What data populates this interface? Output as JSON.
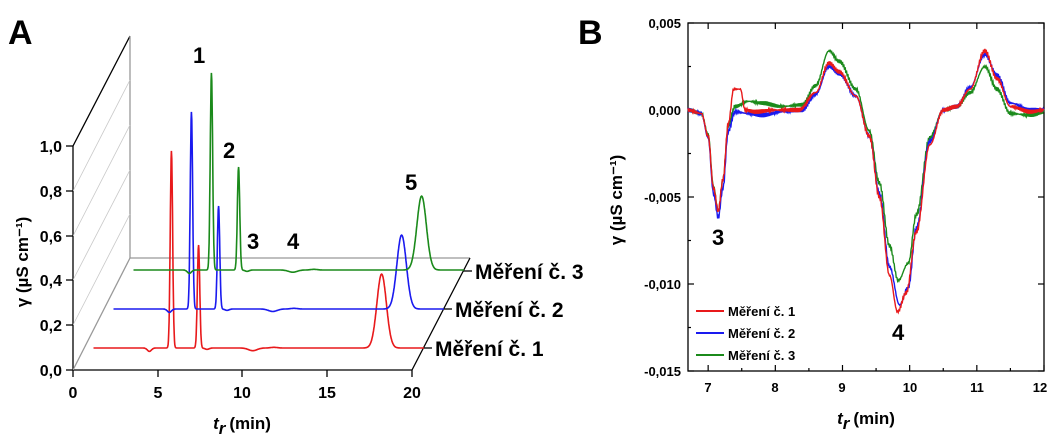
{
  "colors": {
    "run1": "#e8191b",
    "run2": "#1a1aef",
    "run3": "#1b8a1b",
    "axis": "#000000",
    "grid": "#888888"
  },
  "panel_a": {
    "letter": "A",
    "xlabel_main": "t",
    "xlabel_sub": "r",
    "xlabel_unit": "(min)",
    "ylabel": "γ (µS cm⁻¹)",
    "peak_labels": [
      "1",
      "2",
      "3",
      "4",
      "5"
    ],
    "measurement_labels": [
      "Měření č. 3",
      "Měření č. 2",
      "Měření č. 1"
    ]
  },
  "panel_b": {
    "letter": "B",
    "xlabel_main": "t",
    "xlabel_sub": "r",
    "xlabel_unit": "(min)",
    "ylabel": "γ (µS cm⁻¹)",
    "peak_labels": [
      "3",
      "4"
    ],
    "legend": [
      "Měření č. 1",
      "Měření č. 2",
      "Měření č. 3"
    ]
  },
  "chart_data": [
    {
      "type": "line",
      "style": "3d-waterfall",
      "xlim": [
        0,
        20
      ],
      "ylim": [
        0.0,
        1.0
      ],
      "x_ticks": [
        "0",
        "5",
        "10",
        "15",
        "20"
      ],
      "y_ticks": [
        "0,0",
        "0,2",
        "0,4",
        "0,6",
        "0,8",
        "1,0"
      ],
      "series": [
        {
          "name": "Měření č. 1",
          "color": "#e8191b",
          "peaks": [
            {
              "x": 3.8,
              "height": -0.015,
              "width": 0.12
            },
            {
              "x": 5.1,
              "height": 0.88,
              "width": 0.07
            },
            {
              "x": 6.7,
              "height": 0.46,
              "width": 0.07
            },
            {
              "x": 7.2,
              "height": -0.006,
              "width": 0.12
            },
            {
              "x": 9.9,
              "height": -0.012,
              "width": 0.25
            },
            {
              "x": 11.15,
              "height": 0.003,
              "width": 0.2
            },
            {
              "x": 17.5,
              "height": 0.33,
              "width": 0.28
            }
          ]
        },
        {
          "name": "Měření č. 2",
          "color": "#1a1aef",
          "peaks": [
            {
              "x": 3.8,
              "height": -0.015,
              "width": 0.12
            },
            {
              "x": 5.1,
              "height": 0.88,
              "width": 0.07
            },
            {
              "x": 6.7,
              "height": 0.46,
              "width": 0.07
            },
            {
              "x": 7.2,
              "height": -0.006,
              "width": 0.12
            },
            {
              "x": 9.9,
              "height": -0.011,
              "width": 0.25
            },
            {
              "x": 11.15,
              "height": 0.003,
              "width": 0.2
            },
            {
              "x": 17.5,
              "height": 0.33,
              "width": 0.28
            }
          ]
        },
        {
          "name": "Měření č. 3",
          "color": "#1b8a1b",
          "peaks": [
            {
              "x": 3.8,
              "height": -0.015,
              "width": 0.12
            },
            {
              "x": 5.1,
              "height": 0.88,
              "width": 0.07
            },
            {
              "x": 6.7,
              "height": 0.46,
              "width": 0.07
            },
            {
              "x": 7.2,
              "height": -0.006,
              "width": 0.12
            },
            {
              "x": 9.9,
              "height": -0.01,
              "width": 0.25
            },
            {
              "x": 11.15,
              "height": 0.003,
              "width": 0.2
            },
            {
              "x": 17.5,
              "height": 0.33,
              "width": 0.28
            }
          ]
        }
      ]
    },
    {
      "type": "line",
      "xlim": [
        6.7,
        12
      ],
      "ylim": [
        -0.015,
        0.005
      ],
      "x_ticks": [
        "7",
        "8",
        "9",
        "10",
        "11",
        "12"
      ],
      "y_ticks": [
        "0,005",
        "0,000",
        "-0,005",
        "-0,010",
        "-0,015"
      ],
      "legend_position": "bottom-left",
      "series": [
        {
          "name": "Měření č. 1",
          "color": "#e8191b",
          "points": [
            [
              6.7,
              0.0
            ],
            [
              6.9,
              -0.0002
            ],
            [
              7.0,
              -0.0015
            ],
            [
              7.08,
              -0.0045
            ],
            [
              7.15,
              -0.0058
            ],
            [
              7.22,
              -0.004
            ],
            [
              7.3,
              -0.0008
            ],
            [
              7.38,
              0.0012
            ],
            [
              7.48,
              0.0012
            ],
            [
              7.55,
              0.0
            ],
            [
              7.7,
              -0.0001
            ],
            [
              8.0,
              0.0
            ],
            [
              8.35,
              0.0
            ],
            [
              8.6,
              0.001
            ],
            [
              8.8,
              0.0027
            ],
            [
              8.95,
              0.0022
            ],
            [
              9.2,
              0.0008
            ],
            [
              9.4,
              -0.0015
            ],
            [
              9.55,
              -0.005
            ],
            [
              9.7,
              -0.0095
            ],
            [
              9.82,
              -0.0116
            ],
            [
              9.95,
              -0.0105
            ],
            [
              10.1,
              -0.007
            ],
            [
              10.3,
              -0.002
            ],
            [
              10.5,
              0.0
            ],
            [
              10.7,
              0.0002
            ],
            [
              10.9,
              0.0012
            ],
            [
              11.12,
              0.0034
            ],
            [
              11.3,
              0.0018
            ],
            [
              11.5,
              0.0002
            ],
            [
              11.8,
              -0.0001
            ],
            [
              12.0,
              0.0
            ]
          ]
        },
        {
          "name": "Měření č. 2",
          "color": "#1a1aef",
          "points": [
            [
              6.7,
              0.0
            ],
            [
              6.9,
              -0.0002
            ],
            [
              7.0,
              -0.0016
            ],
            [
              7.08,
              -0.0048
            ],
            [
              7.15,
              -0.0062
            ],
            [
              7.22,
              -0.0045
            ],
            [
              7.3,
              -0.0012
            ],
            [
              7.4,
              -0.0001
            ],
            [
              7.6,
              -0.0002
            ],
            [
              7.8,
              -0.0003
            ],
            [
              8.1,
              -0.0001
            ],
            [
              8.4,
              0.0
            ],
            [
              8.6,
              0.0009
            ],
            [
              8.8,
              0.0025
            ],
            [
              8.95,
              0.0021
            ],
            [
              9.2,
              0.0008
            ],
            [
              9.4,
              -0.0015
            ],
            [
              9.55,
              -0.0048
            ],
            [
              9.7,
              -0.009
            ],
            [
              9.85,
              -0.0112
            ],
            [
              9.98,
              -0.0102
            ],
            [
              10.1,
              -0.0068
            ],
            [
              10.3,
              -0.0018
            ],
            [
              10.5,
              0.0
            ],
            [
              10.7,
              0.0002
            ],
            [
              10.9,
              0.0013
            ],
            [
              11.12,
              0.0032
            ],
            [
              11.3,
              0.002
            ],
            [
              11.5,
              0.0004
            ],
            [
              11.8,
              0.0
            ],
            [
              12.0,
              0.0
            ]
          ]
        },
        {
          "name": "Měření č. 3",
          "color": "#1b8a1b",
          "points": [
            [
              6.7,
              0.0
            ],
            [
              6.9,
              -0.0002
            ],
            [
              7.0,
              -0.0014
            ],
            [
              7.08,
              -0.0044
            ],
            [
              7.15,
              -0.0058
            ],
            [
              7.22,
              -0.004
            ],
            [
              7.3,
              -0.0009
            ],
            [
              7.4,
              0.0002
            ],
            [
              7.6,
              0.0005
            ],
            [
              7.8,
              0.0004
            ],
            [
              8.1,
              0.0002
            ],
            [
              8.4,
              0.0003
            ],
            [
              8.6,
              0.0014
            ],
            [
              8.8,
              0.0034
            ],
            [
              8.95,
              0.0028
            ],
            [
              9.2,
              0.0012
            ],
            [
              9.4,
              -0.0012
            ],
            [
              9.55,
              -0.0042
            ],
            [
              9.7,
              -0.0078
            ],
            [
              9.83,
              -0.0098
            ],
            [
              9.98,
              -0.0088
            ],
            [
              10.1,
              -0.006
            ],
            [
              10.3,
              -0.0016
            ],
            [
              10.5,
              0.0
            ],
            [
              10.7,
              0.0002
            ],
            [
              10.9,
              0.001
            ],
            [
              11.12,
              0.0025
            ],
            [
              11.3,
              0.0012
            ],
            [
              11.5,
              -0.0002
            ],
            [
              11.8,
              -0.0003
            ],
            [
              12.0,
              -0.0001
            ]
          ]
        }
      ]
    }
  ]
}
